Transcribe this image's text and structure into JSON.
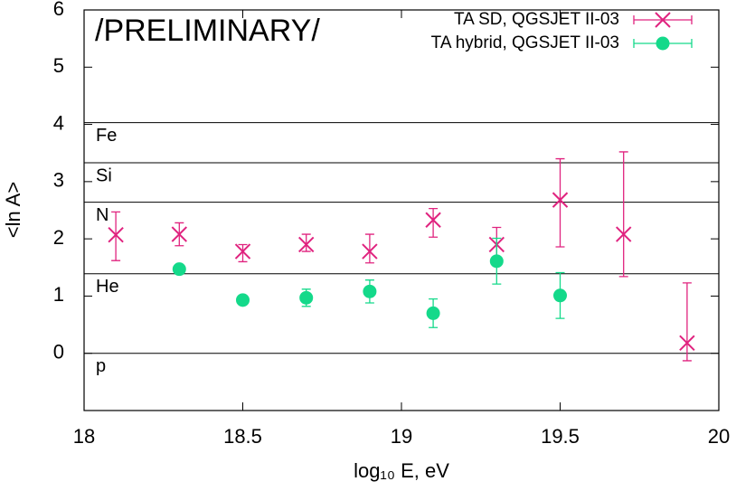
{
  "chart_data": {
    "type": "errorbar",
    "annotation": "/PRELIMINARY/",
    "x_label": "log₁₀ E, eV",
    "y_label": "<ln A>",
    "xlim": [
      18,
      20
    ],
    "xticks": [
      18,
      18.5,
      19,
      19.5,
      20
    ],
    "ylim": [
      -1,
      6
    ],
    "yticks": [
      0,
      1,
      2,
      3,
      4,
      5,
      6
    ],
    "legend": "top-right",
    "reference_lines": [
      {
        "label": "Fe",
        "value": 4.03
      },
      {
        "label": "Si",
        "value": 3.33
      },
      {
        "label": "N",
        "value": 2.64
      },
      {
        "label": "He",
        "value": 1.39
      },
      {
        "label": "p",
        "value": 0
      }
    ],
    "series": [
      {
        "name": "TA SD, QGSJET II-03",
        "color": "#e0237f",
        "marker": "cross",
        "x": [
          18.1,
          18.3,
          18.5,
          18.7,
          18.9,
          19.1,
          19.3,
          19.5,
          19.7,
          19.9
        ],
        "values": [
          2.07,
          2.08,
          1.78,
          1.9,
          1.78,
          2.33,
          1.9,
          2.68,
          2.08,
          0.18
        ],
        "errors_minus": [
          0.45,
          0.2,
          0.18,
          0.12,
          0.2,
          0.3,
          0.3,
          0.82,
          0.74,
          0.31
        ],
        "errors_plus": [
          0.4,
          0.2,
          0.12,
          0.18,
          0.3,
          0.2,
          0.3,
          0.72,
          1.44,
          1.05
        ]
      },
      {
        "name": "TA hybrid, QGSJET II-03",
        "color": "#14d98a",
        "marker": "circle",
        "x": [
          18.3,
          18.5,
          18.7,
          18.9,
          19.1,
          19.3,
          19.5
        ],
        "values": [
          1.47,
          0.93,
          0.97,
          1.08,
          0.7,
          1.61,
          1.01
        ],
        "errors_minus": [
          0.05,
          0.05,
          0.15,
          0.2,
          0.25,
          0.4,
          0.4
        ],
        "errors_plus": [
          0.05,
          0.05,
          0.15,
          0.2,
          0.25,
          0.4,
          0.4
        ]
      }
    ]
  }
}
